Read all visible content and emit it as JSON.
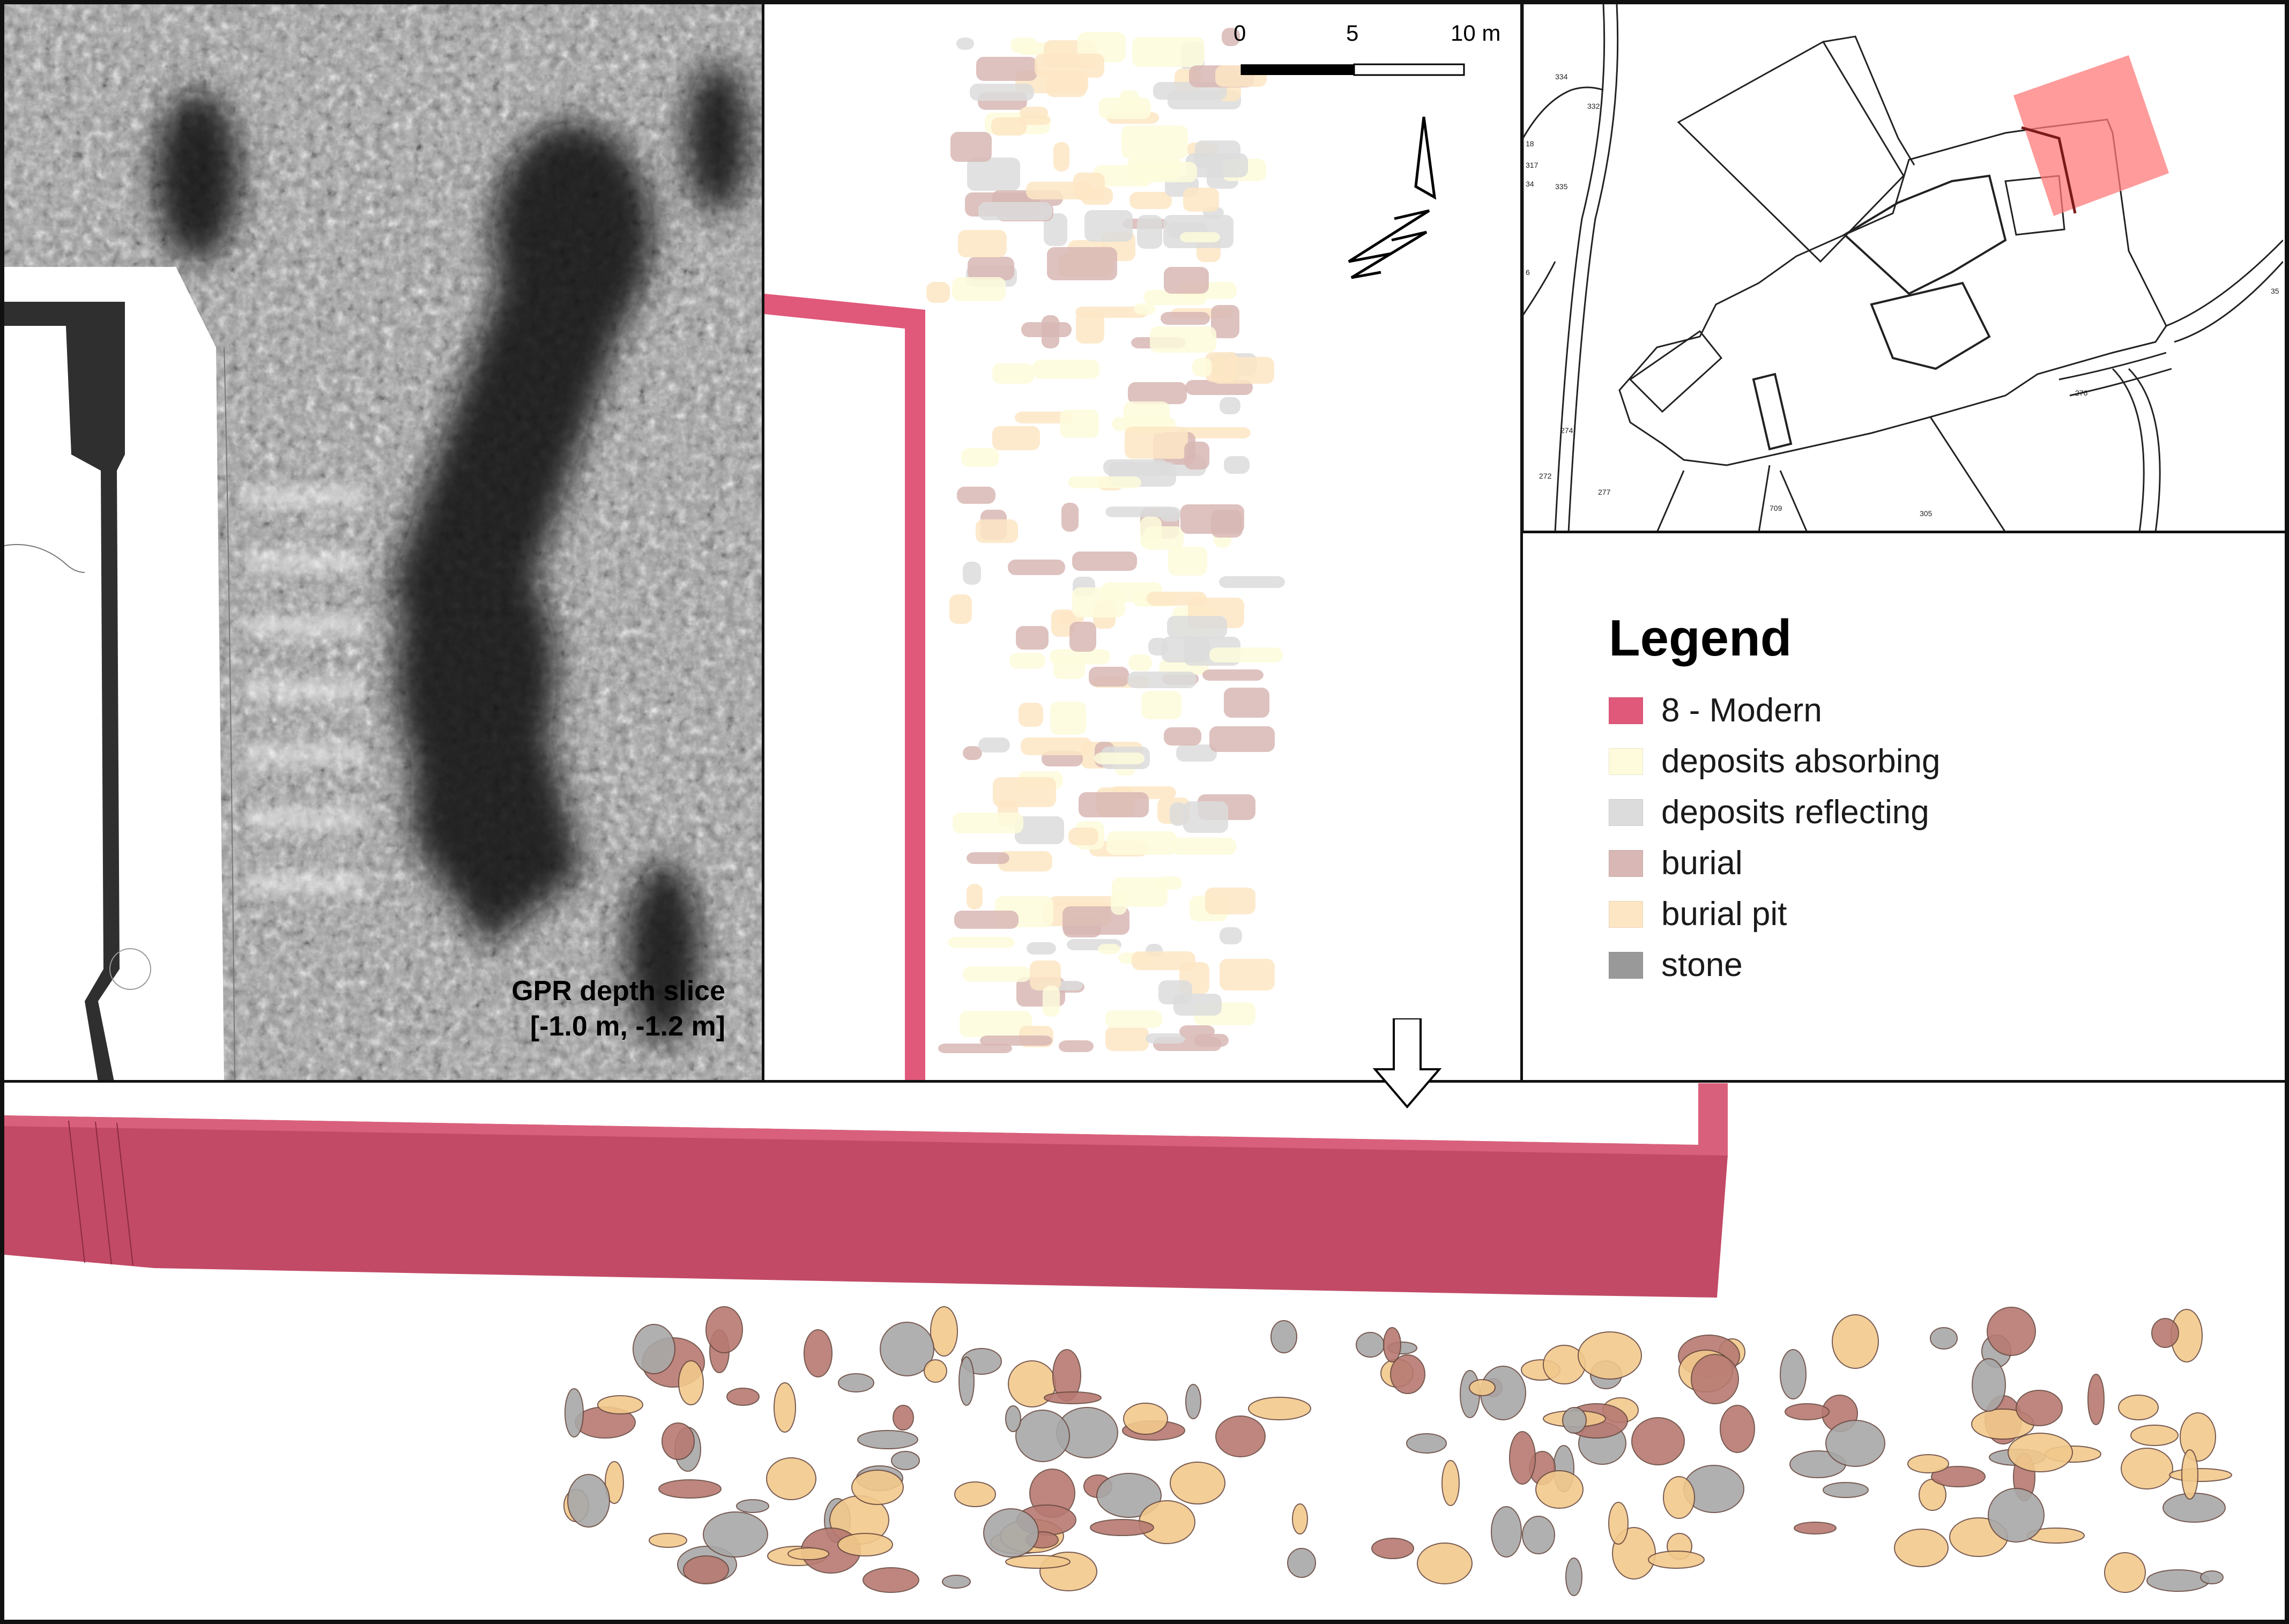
{
  "gpr_panel": {
    "label_line1": "GPR depth slice",
    "label_line2": "[-1.0 m, -1.2 m]"
  },
  "scale_bar": {
    "tick0": "0",
    "tick1": "5",
    "tick2": "10 m"
  },
  "legend": {
    "title": "Legend",
    "items": [
      {
        "label": "8 - Modern",
        "color": "#e0587a"
      },
      {
        "label": "deposits absorbing",
        "color": "#fdfbdc"
      },
      {
        "label": "deposits reflecting",
        "color": "#dcdcdc"
      },
      {
        "label": "burial",
        "color": "#d8b7b4"
      },
      {
        "label": "burial pit",
        "color": "#fde6c4"
      },
      {
        "label": "stone",
        "color": "#999999"
      }
    ]
  },
  "location_map": {
    "parcel_numbers": [
      "334",
      "332",
      "18",
      "317",
      "34",
      "335",
      "6",
      "274",
      "272",
      "277",
      "709",
      "305",
      "276",
      "35"
    ],
    "highlight_color": "#ff7a7a"
  },
  "colors": {
    "modern_wall": "#e0587a",
    "modern_wall_3d": "#c24a66",
    "burial_3d": "#b77a72",
    "burial_pit_3d": "#f2c98c",
    "stone_3d": "#a8a8a8"
  }
}
